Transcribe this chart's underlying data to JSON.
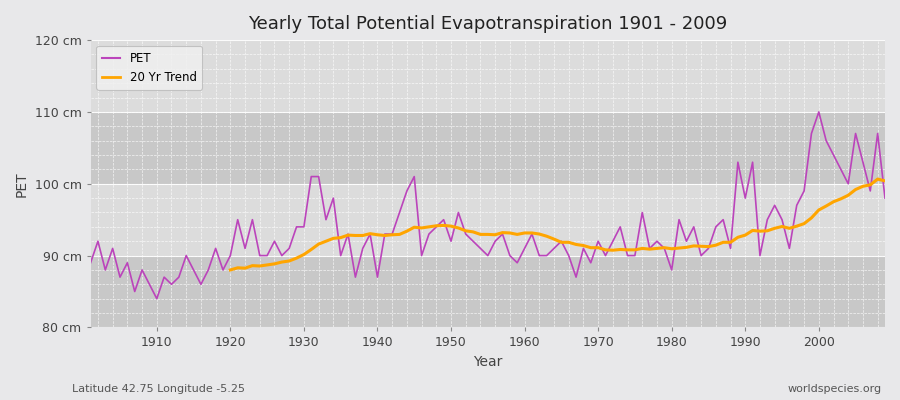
{
  "title": "Yearly Total Potential Evapotranspiration 1901 - 2009",
  "xlabel": "Year",
  "ylabel": "PET",
  "subtitle": "Latitude 42.75 Longitude -5.25",
  "watermark": "worldspecies.org",
  "ylim": [
    80,
    120
  ],
  "ytick_labels": [
    "80 cm",
    "90 cm",
    "100 cm",
    "110 cm",
    "120 cm"
  ],
  "ytick_values": [
    80,
    90,
    100,
    110,
    120
  ],
  "pet_color": "#bb44bb",
  "trend_color": "#FFA500",
  "bg_color": "#e8e8ea",
  "plot_bg_light": "#dcdcdc",
  "plot_bg_dark": "#c8c8c8",
  "legend_bg": "#f0f0f0",
  "years": [
    1901,
    1902,
    1903,
    1904,
    1905,
    1906,
    1907,
    1908,
    1909,
    1910,
    1911,
    1912,
    1913,
    1914,
    1915,
    1916,
    1917,
    1918,
    1919,
    1920,
    1921,
    1922,
    1923,
    1924,
    1925,
    1926,
    1927,
    1928,
    1929,
    1930,
    1931,
    1932,
    1933,
    1934,
    1935,
    1936,
    1937,
    1938,
    1939,
    1940,
    1941,
    1942,
    1943,
    1944,
    1945,
    1946,
    1947,
    1948,
    1949,
    1950,
    1951,
    1952,
    1953,
    1954,
    1955,
    1956,
    1957,
    1958,
    1959,
    1960,
    1961,
    1962,
    1963,
    1964,
    1965,
    1966,
    1967,
    1968,
    1969,
    1970,
    1971,
    1972,
    1973,
    1974,
    1975,
    1976,
    1977,
    1978,
    1979,
    1980,
    1981,
    1982,
    1983,
    1984,
    1985,
    1986,
    1987,
    1988,
    1989,
    1990,
    1991,
    1992,
    1993,
    1994,
    1995,
    1996,
    1997,
    1998,
    1999,
    2000,
    2001,
    2002,
    2003,
    2004,
    2005,
    2006,
    2007,
    2008,
    2009
  ],
  "pet_values": [
    89,
    92,
    88,
    91,
    87,
    89,
    85,
    88,
    86,
    84,
    87,
    86,
    87,
    90,
    88,
    86,
    88,
    91,
    88,
    90,
    95,
    91,
    95,
    90,
    90,
    92,
    90,
    91,
    94,
    94,
    101,
    101,
    95,
    98,
    90,
    93,
    87,
    91,
    93,
    87,
    93,
    93,
    96,
    99,
    101,
    90,
    93,
    94,
    95,
    92,
    96,
    93,
    92,
    91,
    90,
    92,
    93,
    90,
    89,
    91,
    93,
    90,
    90,
    91,
    92,
    90,
    87,
    91,
    89,
    92,
    90,
    92,
    94,
    90,
    90,
    96,
    91,
    92,
    91,
    88,
    95,
    92,
    94,
    90,
    91,
    94,
    95,
    91,
    103,
    98,
    103,
    90,
    95,
    97,
    95,
    91,
    97,
    99,
    107,
    110,
    106,
    104,
    102,
    100,
    107,
    103,
    99,
    107,
    98
  ]
}
